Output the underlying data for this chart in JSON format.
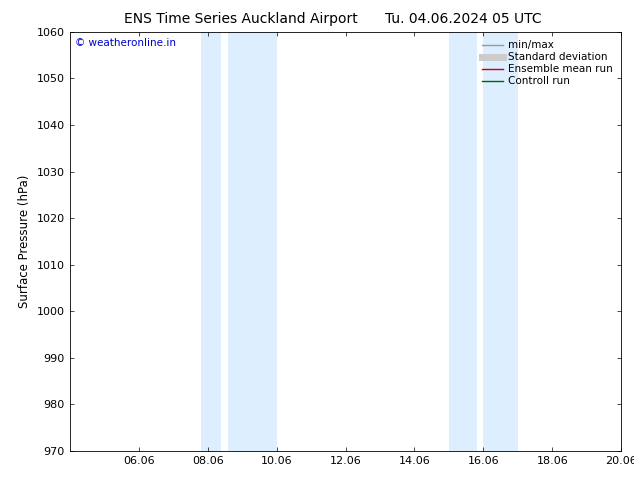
{
  "title_left": "ENS Time Series Auckland Airport",
  "title_right": "Tu. 04.06.2024 05 UTC",
  "ylabel": "Surface Pressure (hPa)",
  "ylim": [
    970,
    1060
  ],
  "yticks": [
    970,
    980,
    990,
    1000,
    1010,
    1020,
    1030,
    1040,
    1050,
    1060
  ],
  "xlim_days": [
    0,
    16
  ],
  "xtick_labels": [
    "06.06",
    "08.06",
    "10.06",
    "12.06",
    "14.06",
    "16.06",
    "18.06",
    "20.06"
  ],
  "xtick_positions": [
    2,
    4,
    6,
    8,
    10,
    12,
    14,
    16
  ],
  "shade_bands": [
    {
      "start": 3.8,
      "end": 4.4
    },
    {
      "start": 4.6,
      "end": 6.0
    },
    {
      "start": 11.0,
      "end": 11.8
    },
    {
      "start": 12.0,
      "end": 13.0
    }
  ],
  "shade_color": "#ddeeff",
  "watermark": "© weatheronline.in",
  "watermark_color": "#0000cc",
  "legend_items": [
    {
      "label": "min/max",
      "color": "#999999",
      "lw": 1.0
    },
    {
      "label": "Standard deviation",
      "color": "#cccccc",
      "lw": 5
    },
    {
      "label": "Ensemble mean run",
      "color": "#cc0000",
      "lw": 1.0
    },
    {
      "label": "Controll run",
      "color": "#006600",
      "lw": 1.0
    }
  ],
  "bg_color": "#ffffff",
  "font_size_title": 10,
  "font_size_axis": 8.5,
  "font_size_tick": 8,
  "font_size_legend": 7.5,
  "font_size_watermark": 7.5
}
